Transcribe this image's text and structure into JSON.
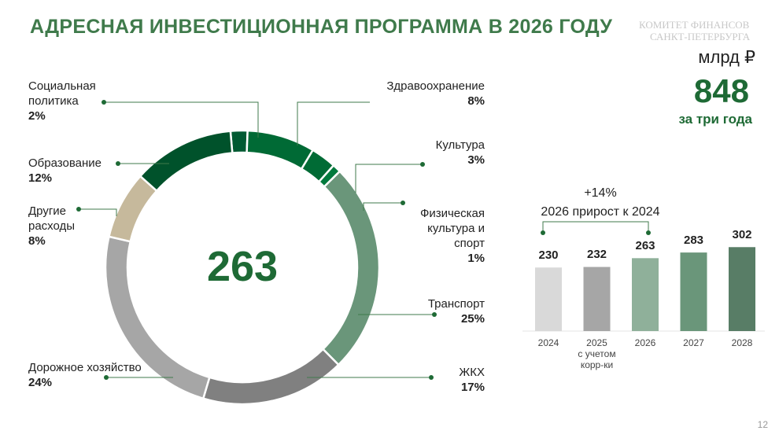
{
  "title": "АДРЕСНАЯ ИНВЕСТИЦИОННАЯ ПРОГРАММА В 2026 ГОДУ",
  "logo": {
    "line1": "КОМИТЕТ ФИНАНСОВ",
    "line2": "САНКТ-ПЕТЕРБУРГА"
  },
  "summary": {
    "unit": "млрд ₽",
    "total": "848",
    "caption": "за три года"
  },
  "page_number": "12",
  "chart_data": [
    {
      "type": "pie",
      "subtype": "donut",
      "center_label": "263",
      "slices": [
        {
          "label": "Социальная политика",
          "pct_label": "2%",
          "value": 2,
          "color": "#005a32"
        },
        {
          "label": "Здравоохранение",
          "pct_label": "8%",
          "value": 8,
          "color": "#006a35"
        },
        {
          "label": "Культура",
          "pct_label": "3%",
          "value": 3,
          "color": "#006b35"
        },
        {
          "label": "Физическая культура и спорт",
          "pct_label": "1%",
          "value": 1,
          "color": "#007a3d"
        },
        {
          "label": "Транспорт",
          "pct_label": "25%",
          "value": 25,
          "color": "#6a967a"
        },
        {
          "label": "ЖКХ",
          "pct_label": "17%",
          "value": 17,
          "color": "#808080"
        },
        {
          "label": "Дорожное хозяйство",
          "pct_label": "24%",
          "value": 24,
          "color": "#a6a6a6"
        },
        {
          "label": "Другие расходы",
          "pct_label": "8%",
          "value": 8,
          "color": "#c6b99c"
        },
        {
          "label": "Образование",
          "pct_label": "12%",
          "value": 12,
          "color": "#00522b"
        }
      ]
    },
    {
      "type": "bar",
      "title": "",
      "annotation": {
        "value": "+14%",
        "text": "2026 прирост к 2024"
      },
      "categories": [
        "2024",
        "2025",
        "2026",
        "2027",
        "2028"
      ],
      "category_notes": [
        "",
        "с учетом корр-ки",
        "",
        "",
        ""
      ],
      "values": [
        230,
        232,
        263,
        283,
        302
      ],
      "colors": [
        "#d9d9d9",
        "#a6a6a6",
        "#8fb09a",
        "#6a967a",
        "#587d66"
      ]
    }
  ]
}
